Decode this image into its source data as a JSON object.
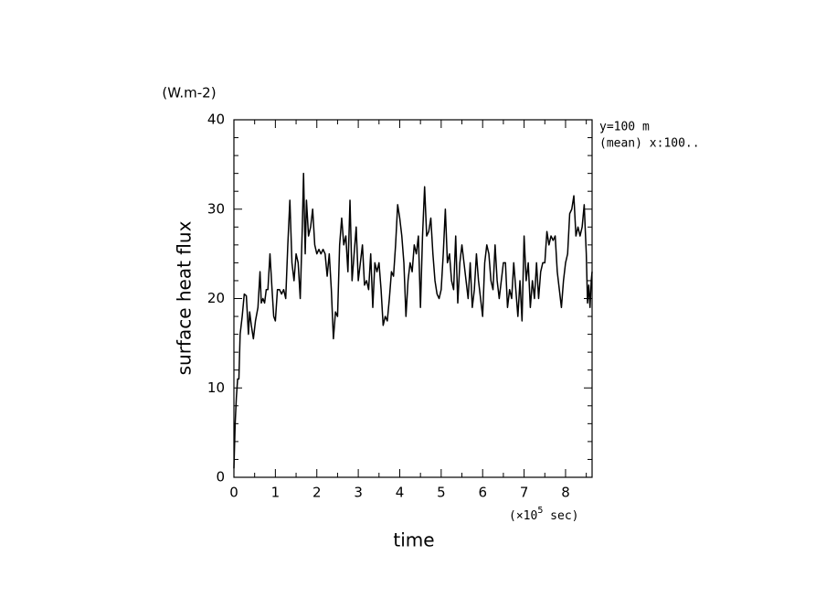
{
  "chart_data": {
    "type": "line",
    "unit_label": "(W.m-2)",
    "annotations": [
      "y=100 m",
      "(mean) x:100.."
    ],
    "ylabel": "surface heat flux",
    "xlabel": "time",
    "x_unit": {
      "prefix": "(×10",
      "exponent": "5",
      "suffix": " sec)"
    },
    "color": "#000000",
    "xlim": [
      0,
      8.64
    ],
    "ylim": [
      0,
      40
    ],
    "xticks": [
      0,
      1,
      2,
      3,
      4,
      5,
      6,
      7,
      8
    ],
    "yticks": [
      0,
      10,
      20,
      30,
      40
    ],
    "xminorticks": [
      0.5,
      1.5,
      2.5,
      3.5,
      4.5,
      5.5,
      6.5,
      7.5,
      8.5
    ],
    "yminorticks": [
      2,
      4,
      6,
      8,
      12,
      14,
      16,
      18,
      22,
      24,
      26,
      28,
      32,
      34,
      36,
      38
    ],
    "x": [
      0,
      0.03,
      0.06,
      0.09,
      0.12,
      0.15,
      0.2,
      0.25,
      0.3,
      0.35,
      0.38,
      0.42,
      0.47,
      0.52,
      0.58,
      0.63,
      0.66,
      0.7,
      0.74,
      0.78,
      0.82,
      0.87,
      0.92,
      0.96,
      1.0,
      1.05,
      1.1,
      1.15,
      1.2,
      1.25,
      1.3,
      1.35,
      1.4,
      1.45,
      1.5,
      1.55,
      1.6,
      1.65,
      1.68,
      1.72,
      1.75,
      1.8,
      1.85,
      1.9,
      1.95,
      2.0,
      2.05,
      2.1,
      2.15,
      2.2,
      2.25,
      2.3,
      2.35,
      2.4,
      2.45,
      2.5,
      2.55,
      2.6,
      2.65,
      2.7,
      2.75,
      2.8,
      2.85,
      2.9,
      2.95,
      3.0,
      3.05,
      3.1,
      3.15,
      3.2,
      3.25,
      3.3,
      3.35,
      3.4,
      3.45,
      3.5,
      3.55,
      3.6,
      3.65,
      3.7,
      3.75,
      3.8,
      3.85,
      3.9,
      3.95,
      4.0,
      4.05,
      4.1,
      4.15,
      4.2,
      4.25,
      4.3,
      4.35,
      4.4,
      4.45,
      4.5,
      4.55,
      4.6,
      4.65,
      4.7,
      4.75,
      4.8,
      4.85,
      4.9,
      4.95,
      5.0,
      5.05,
      5.1,
      5.15,
      5.2,
      5.25,
      5.3,
      5.35,
      5.4,
      5.45,
      5.5,
      5.55,
      5.6,
      5.65,
      5.7,
      5.75,
      5.8,
      5.85,
      5.9,
      5.95,
      6.0,
      6.05,
      6.1,
      6.15,
      6.2,
      6.25,
      6.3,
      6.35,
      6.4,
      6.45,
      6.5,
      6.55,
      6.6,
      6.65,
      6.7,
      6.75,
      6.8,
      6.85,
      6.9,
      6.95,
      7.0,
      7.05,
      7.1,
      7.15,
      7.2,
      7.25,
      7.3,
      7.35,
      7.4,
      7.45,
      7.5,
      7.55,
      7.6,
      7.65,
      7.7,
      7.75,
      7.8,
      7.85,
      7.9,
      7.95,
      8.0,
      8.05,
      8.1,
      8.15,
      8.2,
      8.25,
      8.3,
      8.35,
      8.4,
      8.45,
      8.5,
      8.53,
      8.56,
      8.59,
      8.62,
      8.64
    ],
    "values": [
      1,
      6,
      9,
      11,
      11,
      16,
      18,
      20.5,
      20.3,
      16,
      18.5,
      17,
      15.5,
      17.5,
      19,
      23,
      19.5,
      20,
      19.5,
      21,
      21,
      25,
      21,
      18,
      17.5,
      21,
      21,
      20.5,
      21,
      20,
      26,
      31,
      24,
      22,
      25,
      24,
      20,
      28,
      34,
      25,
      31,
      27,
      28,
      30,
      26,
      25,
      25.5,
      25,
      25.5,
      25,
      22.5,
      25,
      21,
      15.5,
      18.5,
      18,
      26,
      29,
      26,
      27,
      23,
      31,
      22,
      25,
      28,
      22,
      24,
      26,
      21.5,
      22,
      21,
      25,
      19,
      24,
      23,
      24,
      21,
      17,
      18,
      17.5,
      20,
      23,
      22.5,
      26,
      30.5,
      29,
      27,
      24,
      18,
      22,
      24,
      23,
      26,
      25,
      27,
      19,
      27,
      32.5,
      27,
      27.5,
      29,
      25,
      22,
      20.5,
      20,
      21,
      25,
      30,
      24,
      25,
      22,
      21,
      27,
      19.5,
      24,
      26,
      24,
      22,
      20,
      24,
      19,
      21,
      25,
      22,
      20,
      18,
      24,
      26,
      25,
      22,
      21,
      26,
      22,
      20,
      22,
      24,
      24,
      19,
      21,
      20,
      24,
      21,
      18,
      22,
      17.5,
      27,
      22,
      24,
      19,
      22,
      20,
      24,
      20,
      23,
      24,
      24,
      27.5,
      26,
      27,
      26.5,
      27,
      23,
      21,
      19,
      22,
      24,
      25,
      29.5,
      30,
      31.5,
      27,
      28,
      27,
      28,
      30.5,
      25,
      19.5,
      21.5,
      19,
      22,
      23
    ]
  }
}
